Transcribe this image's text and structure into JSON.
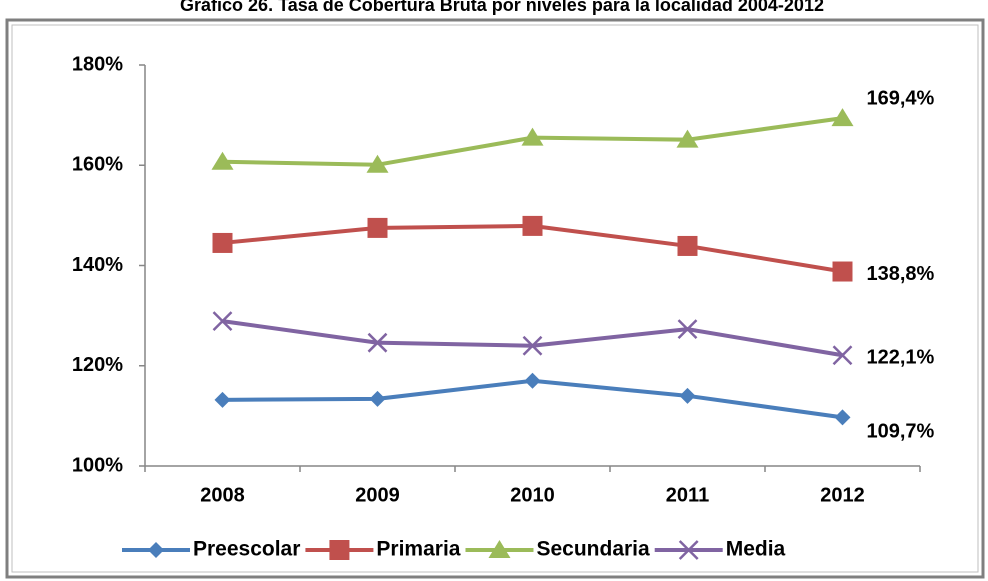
{
  "chart_data": {
    "type": "line",
    "title": "Gráfico 26. Tasa de Cobertura Bruta por niveles para la localidad 2004-2012",
    "categories": [
      "2008",
      "2009",
      "2010",
      "2011",
      "2012"
    ],
    "ylim": [
      100,
      180
    ],
    "yticks": [
      {
        "value": 100,
        "label": "100%"
      },
      {
        "value": 120,
        "label": "120%"
      },
      {
        "value": 140,
        "label": "140%"
      },
      {
        "value": 160,
        "label": "160%"
      },
      {
        "value": 180,
        "label": "180%"
      }
    ],
    "grid": false,
    "legend": "bottom",
    "series": [
      {
        "name": "Preescolar",
        "color": "#4a7ebb",
        "marker": "diamond",
        "values": [
          113.2,
          113.4,
          117.0,
          114.0,
          109.7
        ],
        "value_labels": [
          null,
          null,
          null,
          null,
          "109,7%"
        ]
      },
      {
        "name": "Primaria",
        "color": "#c0504d",
        "marker": "square",
        "values": [
          144.5,
          147.5,
          147.9,
          143.9,
          138.8
        ],
        "value_labels": [
          null,
          null,
          null,
          null,
          "138,8%"
        ]
      },
      {
        "name": "Secundaria",
        "color": "#9bbb59",
        "marker": "triangle",
        "values": [
          160.7,
          160.1,
          165.5,
          165.1,
          169.4
        ],
        "value_labels": [
          null,
          null,
          null,
          null,
          "169,4%"
        ]
      },
      {
        "name": "Media",
        "color": "#8064a2",
        "marker": "x",
        "values": [
          128.9,
          124.6,
          124.0,
          127.3,
          122.1
        ],
        "value_labels": [
          null,
          null,
          null,
          null,
          "122,1%"
        ]
      }
    ]
  }
}
